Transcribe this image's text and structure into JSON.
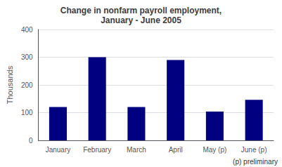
{
  "chart_data": {
    "type": "bar",
    "title": "Change in nonfarm payroll employment,\nJanuary - June 2005",
    "categories": [
      "January",
      "February",
      "March",
      "April",
      "May (p)",
      "June (p)"
    ],
    "values": [
      120,
      300,
      120,
      290,
      104,
      146
    ],
    "color": "#000080",
    "ylabel": "Thousands",
    "ylim": [
      0,
      400
    ],
    "yticks": [
      0,
      100,
      200,
      300,
      400
    ],
    "grid": true,
    "annotations": [
      "(p) preliminary"
    ]
  }
}
